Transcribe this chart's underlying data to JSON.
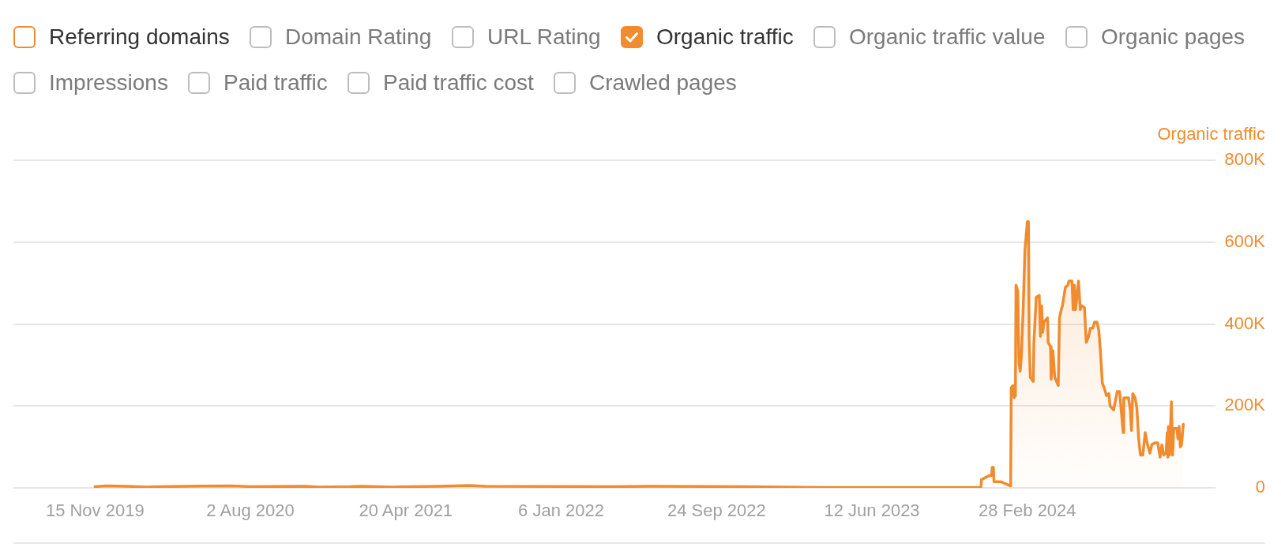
{
  "chart_data": {
    "type": "area",
    "ylabel": "Organic traffic",
    "annotations": [
      "Referring domains",
      "Domain Rating",
      "URL Rating",
      "Organic traffic value",
      "Organic pages",
      "Impressions",
      "Paid traffic",
      "Paid traffic cost",
      "Crawled pages"
    ],
    "legend": "top left",
    "grid": "y",
    "xlim": [
      "2019-07-01",
      "2025-01-09"
    ],
    "xticks": [
      {
        "value": "2019-11-15",
        "label": "15 Nov 2019"
      },
      {
        "value": "2020-08-02",
        "label": "2 Aug 2020"
      },
      {
        "value": "2021-04-20",
        "label": "20 Apr 2021"
      },
      {
        "value": "2022-01-06",
        "label": "6 Jan 2022"
      },
      {
        "value": "2022-09-24",
        "label": "24 Sep 2022"
      },
      {
        "value": "2023-06-12",
        "label": "12 Jun 2023"
      },
      {
        "value": "2024-02-28",
        "label": "28 Feb 2024"
      }
    ],
    "ylim": [
      0,
      800000
    ],
    "yticks": [
      0,
      {
        "value": 200000,
        "label": "200K"
      },
      {
        "value": 400000,
        "label": "400K"
      },
      {
        "value": 600000,
        "label": "600K"
      },
      {
        "value": 800000,
        "label": "800K"
      }
    ],
    "x": [
      "2019-11-15",
      "2019-12-05",
      "2020-01-05",
      "2020-02-10",
      "2020-03-05",
      "2020-07-01",
      "2020-08-03",
      "2020-11-01",
      "2020-11-25",
      "2021-01-16",
      "2021-02-04",
      "2021-03-24",
      "2021-06-17",
      "2021-08-04",
      "2021-09-01",
      "2022-04-05",
      "2022-06-05",
      "2022-10-31",
      "2023-04-02",
      "2023-12-12",
      "2023-12-13",
      "2023-12-26",
      "2023-12-30",
      "2023-12-31",
      "2024-01-02",
      "2024-01-03",
      "2024-01-15",
      "2024-01-30",
      "2024-01-31",
      "2024-02-01",
      "2024-02-04",
      "2024-02-06",
      "2024-02-08",
      "2024-02-09",
      "2024-02-12",
      "2024-02-14",
      "2024-02-16",
      "2024-02-18",
      "2024-02-21",
      "2024-02-24",
      "2024-02-28",
      "2024-03-01",
      "2024-03-02",
      "2024-03-04",
      "2024-03-09",
      "2024-03-10",
      "2024-03-14",
      "2024-03-19",
      "2024-03-21",
      "2024-03-23",
      "2024-03-25",
      "2024-03-27",
      "2024-04-02",
      "2024-04-03",
      "2024-04-07",
      "2024-04-08",
      "2024-04-11",
      "2024-04-14",
      "2024-04-20",
      "2024-04-22",
      "2024-04-25",
      "2024-04-27",
      "2024-05-02",
      "2024-05-06",
      "2024-05-08",
      "2024-05-13",
      "2024-05-15",
      "2024-05-17",
      "2024-05-19",
      "2024-05-24",
      "2024-05-27",
      "2024-05-29",
      "2024-06-03",
      "2024-06-06",
      "2024-06-10",
      "2024-06-13",
      "2024-06-17",
      "2024-06-20",
      "2024-06-24",
      "2024-06-27",
      "2024-06-30",
      "2024-07-03",
      "2024-07-06",
      "2024-07-10",
      "2024-07-14",
      "2024-07-16",
      "2024-07-22",
      "2024-07-28",
      "2024-08-01",
      "2024-08-04",
      "2024-08-07",
      "2024-08-08",
      "2024-08-16",
      "2024-08-19",
      "2024-08-21",
      "2024-08-23",
      "2024-08-27",
      "2024-08-30",
      "2024-09-02",
      "2024-09-05",
      "2024-09-09",
      "2024-09-13",
      "2024-09-17",
      "2024-09-21",
      "2024-09-24",
      "2024-09-29",
      "2024-10-04",
      "2024-10-08",
      "2024-10-11",
      "2024-10-14",
      "2024-10-18",
      "2024-10-20",
      "2024-10-21",
      "2024-10-22",
      "2024-10-24",
      "2024-10-27",
      "2024-10-29",
      "2024-10-31",
      "2024-11-05",
      "2024-11-07",
      "2024-11-09",
      "2024-11-11",
      "2024-11-13",
      "2024-11-16"
    ],
    "series": [
      {
        "name": "Organic traffic",
        "color": "#f08b2e",
        "values": [
          3000,
          5000,
          4000,
          2000,
          3000,
          5000,
          3000,
          4000,
          2000,
          3000,
          4000,
          2000,
          4000,
          6000,
          4000,
          3000,
          4000,
          3000,
          1000,
          1000,
          20000,
          30000,
          30000,
          50000,
          50000,
          15000,
          15000,
          5000,
          5000,
          245000,
          250000,
          220000,
          225000,
          495000,
          480000,
          305000,
          285000,
          320000,
          435000,
          580000,
          650000,
          650000,
          370000,
          270000,
          260000,
          355000,
          465000,
          470000,
          370000,
          445000,
          380000,
          405000,
          415000,
          355000,
          345000,
          265000,
          335000,
          270000,
          250000,
          415000,
          435000,
          445000,
          490000,
          495000,
          505000,
          505000,
          435000,
          495000,
          435000,
          505000,
          435000,
          445000,
          440000,
          355000,
          370000,
          390000,
          390000,
          405000,
          405000,
          385000,
          330000,
          255000,
          245000,
          225000,
          230000,
          200000,
          190000,
          235000,
          235000,
          185000,
          135000,
          220000,
          220000,
          190000,
          140000,
          230000,
          220000,
          195000,
          120000,
          80000,
          80000,
          135000,
          105000,
          85000,
          105000,
          110000,
          110000,
          75000,
          105000,
          80000,
          85000,
          135000,
          75000,
          150000,
          80000,
          210000,
          80000,
          145000,
          145000,
          120000,
          150000,
          100000,
          105000,
          155000
        ]
      }
    ]
  }
}
